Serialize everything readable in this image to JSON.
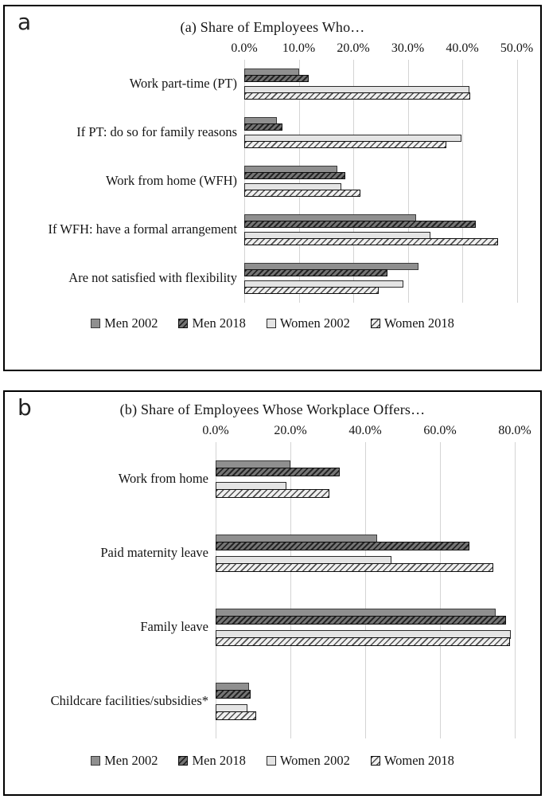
{
  "figure": {
    "background": "#ffffff",
    "panel_border_color": "#000000",
    "gridline_color": "#d4d4d4",
    "series_styles": {
      "men_2002_fill": "#8f8f8f",
      "men_2018_fill": "dark-gray-diagonal-hatch",
      "women_2002_fill": "#e4e4e4",
      "women_2018_fill": "light-gray-diagonal-hatch"
    }
  },
  "chart_data": [
    {
      "type": "bar",
      "orientation": "horizontal",
      "panel_letter": "a",
      "title": "(a) Share of Employees Who…",
      "axis": {
        "position": "top",
        "min": 0,
        "max": 50,
        "tick_step": 10,
        "ticks": [
          "0.0%",
          "10.0%",
          "20.0%",
          "30.0%",
          "40.0%",
          "50.0%"
        ]
      },
      "grid": true,
      "legend_position": "bottom",
      "legend": [
        "Men 2002",
        "Men 2018",
        "Women 2002",
        "Women 2018"
      ],
      "categories": [
        "Work part-time (PT)",
        "If PT: do so for family reasons",
        "Work from home (WFH)",
        "If WFH: have a formal arrangement",
        "Are not satisfied with flexibility"
      ],
      "series": [
        {
          "name": "Men 2002",
          "values": [
            10.0,
            6.0,
            17.1,
            31.6,
            31.9
          ]
        },
        {
          "name": "Men 2018",
          "values": [
            11.8,
            7.0,
            18.5,
            42.5,
            26.3
          ]
        },
        {
          "name": "Women 2002",
          "values": [
            41.3,
            39.8,
            17.8,
            34.2,
            29.2
          ]
        },
        {
          "name": "Women 2018",
          "values": [
            41.5,
            37.1,
            21.3,
            46.5,
            24.7
          ]
        }
      ]
    },
    {
      "type": "bar",
      "orientation": "horizontal",
      "panel_letter": "b",
      "title": "(b) Share of Employees Whose Workplace Offers…",
      "axis": {
        "position": "top",
        "min": 0,
        "max": 80,
        "tick_step": 20,
        "ticks": [
          "0.0%",
          "20.0%",
          "40.0%",
          "60.0%",
          "80.0%"
        ]
      },
      "grid": true,
      "legend_position": "bottom",
      "legend": [
        "Men 2002",
        "Men 2018",
        "Women 2002",
        "Women 2018"
      ],
      "categories": [
        "Work from home",
        "Paid maternity leave",
        "Family leave",
        "Childcare facilities/subsidies*"
      ],
      "series": [
        {
          "name": "Men 2002",
          "values": [
            20.0,
            43.1,
            74.9,
            8.9
          ]
        },
        {
          "name": "Men 2018",
          "values": [
            33.2,
            67.8,
            77.6,
            9.4
          ]
        },
        {
          "name": "Women 2002",
          "values": [
            18.9,
            47.0,
            78.9,
            8.5
          ]
        },
        {
          "name": "Women 2018",
          "values": [
            30.5,
            74.2,
            78.7,
            10.9
          ]
        }
      ]
    }
  ]
}
